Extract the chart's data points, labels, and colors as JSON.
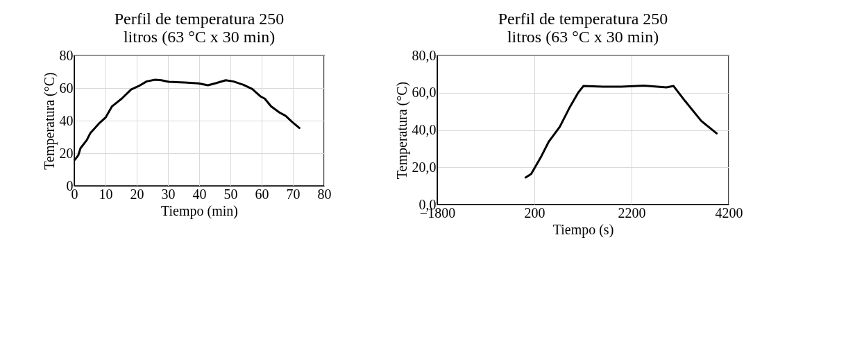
{
  "chart_data": [
    {
      "type": "line",
      "title": [
        "Perfil de temperatura 250",
        "litros (63 °C x 30 min)"
      ],
      "xlabel": "Tiempo (min)",
      "ylabel": "Temperatura (°C)",
      "xlim": [
        0,
        80
      ],
      "xticks": [
        0,
        10,
        20,
        30,
        40,
        50,
        60,
        70,
        80
      ],
      "ylim": [
        0,
        80
      ],
      "yticks": [
        0,
        20,
        40,
        60,
        80
      ],
      "grid": true,
      "marker": "none",
      "line_style": "solid",
      "series": [
        {
          "color": "#000000",
          "x": [
            0.2,
            1.3,
            2.0,
            4.0,
            5.1,
            8.1,
            10.1,
            12.1,
            15.2,
            18.2,
            20.6,
            23.2,
            25.9,
            27.9,
            30.3,
            35.4,
            39.8,
            42.8,
            45.5,
            48.5,
            50.9,
            54.2,
            57.0,
            59.6,
            61.0,
            63.0,
            65.7,
            67.7,
            69.7,
            72.1
          ],
          "values": [
            16.0,
            18.8,
            23.1,
            28.0,
            32.2,
            38.6,
            42.1,
            48.8,
            53.5,
            59.1,
            61.2,
            64.1,
            65.1,
            64.8,
            63.8,
            63.4,
            62.9,
            61.7,
            63.1,
            64.8,
            64.1,
            62.0,
            59.4,
            54.9,
            53.5,
            48.8,
            45.0,
            42.9,
            39.3,
            35.5
          ]
        }
      ]
    },
    {
      "type": "line",
      "title": [
        "Perfil de temperatura 250",
        "litros (63 °C x 30 min)"
      ],
      "xlabel": "Tiempo (s)",
      "ylabel": "Temperatura (°C)",
      "xlim": [
        -1800,
        4200
      ],
      "xticks": [
        -1800,
        200,
        2200,
        4200
      ],
      "ylim": [
        0,
        80
      ],
      "yticks": [
        {
          "value": 0,
          "label": "0,0"
        },
        {
          "value": 20,
          "label": "20,0"
        },
        {
          "value": 40,
          "label": "40,0"
        },
        {
          "value": 60,
          "label": "60,0"
        },
        {
          "value": 80,
          "label": "80,0"
        }
      ],
      "grid": true,
      "marker": "none",
      "line_style": "solid",
      "series": [
        {
          "color": "#000000",
          "x": [
            20,
            133,
            343,
            491,
            723,
            934,
            1103,
            1209,
            1609,
            1989,
            2453,
            2918,
            3065,
            3298,
            3635,
            3952
          ],
          "values": [
            14.5,
            16.4,
            25.9,
            33.5,
            41.7,
            52.5,
            60.1,
            63.6,
            63.3,
            63.3,
            63.8,
            62.9,
            63.6,
            55.7,
            44.9,
            38.2
          ]
        }
      ]
    }
  ]
}
